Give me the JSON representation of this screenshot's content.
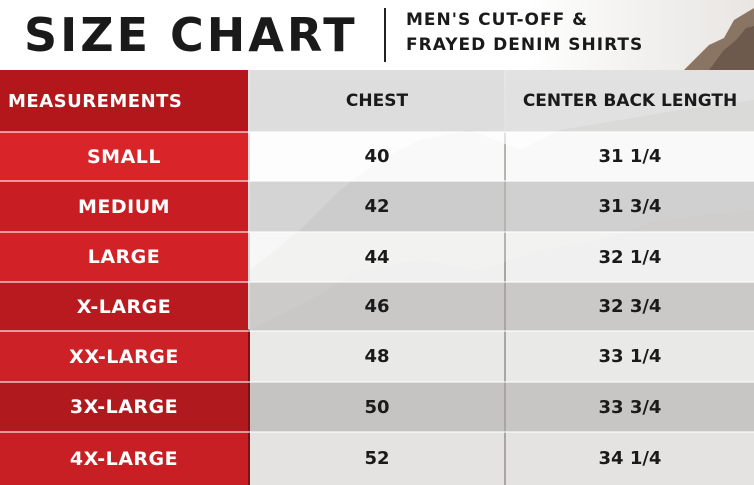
{
  "header": {
    "title": "SIZE CHART",
    "subtitle_line1": "MEN'S CUT-OFF &",
    "subtitle_line2": "FRAYED DENIM SHIRTS"
  },
  "table": {
    "columns": [
      "MEASUREMENTS",
      "CHEST",
      "CENTER BACK LENGTH"
    ],
    "rows": [
      {
        "size": "SMALL",
        "chest": "40",
        "back_length": "31 1/4"
      },
      {
        "size": "MEDIUM",
        "chest": "42",
        "back_length": "31 3/4"
      },
      {
        "size": "LARGE",
        "chest": "44",
        "back_length": "32 1/4"
      },
      {
        "size": "X-LARGE",
        "chest": "46",
        "back_length": "32 3/4"
      },
      {
        "size": "XX-LARGE",
        "chest": "48",
        "back_length": "33 1/4"
      },
      {
        "size": "3X-LARGE",
        "chest": "50",
        "back_length": "33 3/4"
      },
      {
        "size": "4X-LARGE",
        "chest": "52",
        "back_length": "34 1/4"
      }
    ]
  },
  "colors": {
    "accent_red": "#c8191e",
    "dark_red": "#8f1518",
    "text_dark": "#1a1a1a"
  }
}
